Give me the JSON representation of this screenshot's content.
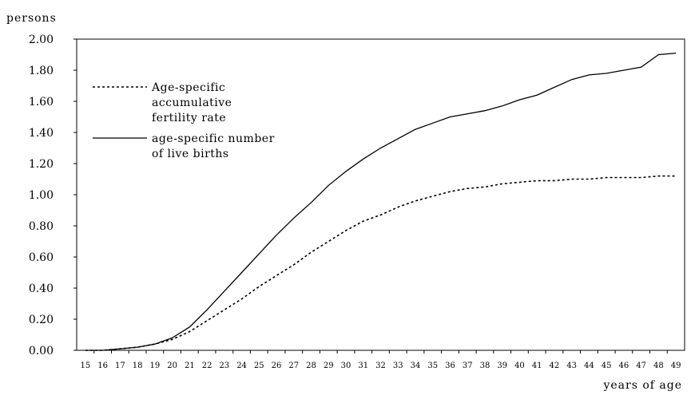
{
  "chart_data": {
    "type": "line",
    "ylabel": "persons",
    "xlabel": "years of age",
    "ylim": [
      0,
      2.0
    ],
    "yticks": [
      "0.00",
      "0.20",
      "0.40",
      "0.60",
      "0.80",
      "1.00",
      "1.20",
      "1.40",
      "1.60",
      "1.80",
      "2.00"
    ],
    "x": [
      15,
      16,
      17,
      18,
      19,
      20,
      21,
      22,
      23,
      24,
      25,
      26,
      27,
      28,
      29,
      30,
      31,
      32,
      33,
      34,
      35,
      36,
      37,
      38,
      39,
      40,
      41,
      42,
      43,
      44,
      45,
      46,
      47,
      48,
      49
    ],
    "grid": false,
    "legend_position": "top-left",
    "series": [
      {
        "name": "Age-specific accumulative fertility rate",
        "legend_lines": [
          "Age-specific",
          "accumulative",
          "fertility rate"
        ],
        "style": "dotted",
        "values": [
          0.0,
          0.0,
          0.01,
          0.02,
          0.04,
          0.07,
          0.12,
          0.19,
          0.26,
          0.33,
          0.41,
          0.48,
          0.55,
          0.63,
          0.7,
          0.77,
          0.83,
          0.87,
          0.92,
          0.96,
          0.99,
          1.02,
          1.04,
          1.05,
          1.07,
          1.08,
          1.09,
          1.09,
          1.1,
          1.1,
          1.11,
          1.11,
          1.11,
          1.12,
          1.12
        ]
      },
      {
        "name": "age-specific number of live births",
        "legend_lines": [
          "age-specific number",
          "of live births"
        ],
        "style": "solid",
        "values": [
          0.0,
          0.0,
          0.01,
          0.02,
          0.04,
          0.08,
          0.15,
          0.26,
          0.38,
          0.5,
          0.62,
          0.74,
          0.85,
          0.95,
          1.06,
          1.15,
          1.23,
          1.3,
          1.36,
          1.42,
          1.46,
          1.5,
          1.52,
          1.54,
          1.57,
          1.61,
          1.64,
          1.69,
          1.74,
          1.77,
          1.78,
          1.8,
          1.82,
          1.9,
          1.91
        ]
      }
    ]
  }
}
